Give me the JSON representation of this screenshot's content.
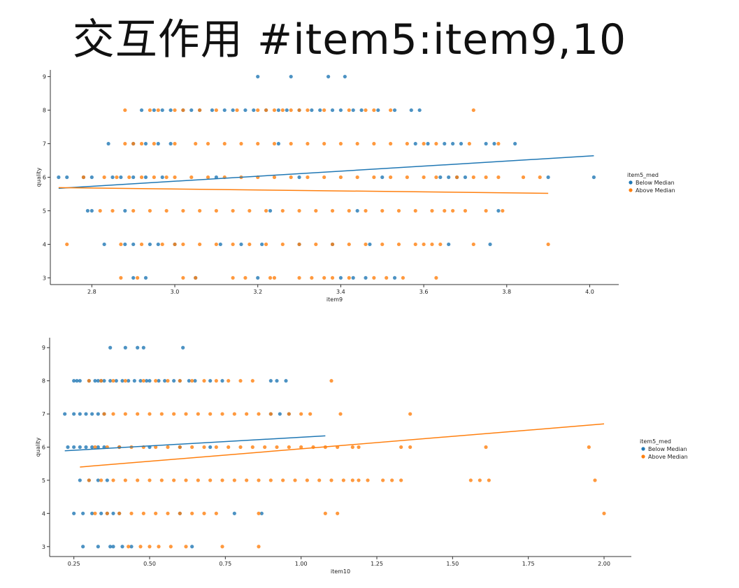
{
  "page_title": "交互作用 #item5:item9,10",
  "chart_data": [
    {
      "type": "scatter",
      "xlabel": "item9",
      "ylabel": "quality",
      "xlim": [
        2.7,
        4.07
      ],
      "ylim": [
        2.8,
        9.2
      ],
      "xticks": [
        2.8,
        3.0,
        3.2,
        3.4,
        3.6,
        3.8,
        4.0
      ],
      "xtick_labels": [
        "2.8",
        "3.0",
        "3.2",
        "3.4",
        "3.6",
        "3.8",
        "4.0"
      ],
      "yticks": [
        3,
        4,
        5,
        6,
        7,
        8,
        9
      ],
      "ytick_labels": [
        "3",
        "4",
        "5",
        "6",
        "7",
        "8",
        "9"
      ],
      "legend": {
        "title": "item5_med",
        "position": "right"
      },
      "series": [
        {
          "name": "Below Median",
          "color": "#1f77b4",
          "points": {
            "9": [
              3.2,
              3.28,
              3.37,
              3.41
            ],
            "8": [
              2.92,
              2.95,
              2.97,
              2.99,
              3.02,
              3.04,
              3.06,
              3.09,
              3.12,
              3.14,
              3.17,
              3.19,
              3.22,
              3.25,
              3.27,
              3.3,
              3.33,
              3.35,
              3.38,
              3.4,
              3.43,
              3.45,
              3.49,
              3.53,
              3.57,
              3.59
            ],
            "7": [
              2.84,
              2.9,
              2.93,
              2.96,
              2.99,
              3.25,
              3.58,
              3.61,
              3.65,
              3.67,
              3.69,
              3.75,
              3.77,
              3.82
            ],
            "6": [
              2.72,
              2.74,
              2.78,
              2.8,
              2.85,
              2.87,
              2.9,
              2.93,
              2.97,
              3.1,
              3.3,
              3.5,
              3.64,
              3.66,
              3.68,
              3.7,
              3.9,
              4.01
            ],
            "5": [
              2.79,
              2.8,
              2.88,
              3.23,
              3.44,
              3.78
            ],
            "4": [
              2.83,
              2.88,
              2.9,
              2.94,
              2.96,
              3.0,
              3.11,
              3.16,
              3.21,
              3.3,
              3.38,
              3.47,
              3.66,
              3.76
            ],
            "3": [
              2.9,
              2.93,
              3.05,
              3.2,
              3.4,
              3.43,
              3.46,
              3.53
            ]
          },
          "fit_line": {
            "x": [
              2.72,
              4.01
            ],
            "y": [
              5.67,
              6.64
            ]
          }
        },
        {
          "name": "Above Median",
          "color": "#ff7f0e",
          "points": {
            "8": [
              2.88,
              2.94,
              2.96,
              3.0,
              3.02,
              3.06,
              3.1,
              3.15,
              3.2,
              3.22,
              3.24,
              3.26,
              3.28,
              3.3,
              3.32,
              3.36,
              3.42,
              3.46,
              3.48,
              3.52,
              3.72
            ],
            "7": [
              2.88,
              2.9,
              2.92,
              2.95,
              3.0,
              3.05,
              3.08,
              3.12,
              3.16,
              3.2,
              3.24,
              3.28,
              3.32,
              3.36,
              3.4,
              3.44,
              3.48,
              3.52,
              3.56,
              3.6,
              3.63,
              3.71,
              3.78
            ],
            "6": [
              2.78,
              2.83,
              2.86,
              2.89,
              2.92,
              2.95,
              2.98,
              3.0,
              3.04,
              3.08,
              3.12,
              3.16,
              3.2,
              3.24,
              3.28,
              3.32,
              3.36,
              3.4,
              3.44,
              3.48,
              3.52,
              3.56,
              3.6,
              3.63,
              3.68,
              3.72,
              3.75,
              3.78,
              3.84,
              3.88
            ],
            "5": [
              2.82,
              2.85,
              2.9,
              2.94,
              2.98,
              3.02,
              3.06,
              3.1,
              3.14,
              3.18,
              3.22,
              3.26,
              3.3,
              3.34,
              3.38,
              3.42,
              3.46,
              3.5,
              3.54,
              3.58,
              3.62,
              3.65,
              3.67,
              3.7,
              3.75,
              3.79
            ],
            "4": [
              2.74,
              2.87,
              2.92,
              2.97,
              3.0,
              3.02,
              3.06,
              3.1,
              3.14,
              3.18,
              3.22,
              3.26,
              3.3,
              3.34,
              3.38,
              3.42,
              3.46,
              3.5,
              3.54,
              3.58,
              3.6,
              3.62,
              3.64,
              3.72,
              3.9
            ],
            "3": [
              2.87,
              2.91,
              3.02,
              3.05,
              3.14,
              3.17,
              3.23,
              3.24,
              3.3,
              3.33,
              3.36,
              3.38,
              3.42,
              3.48,
              3.51,
              3.55,
              3.63
            ]
          },
          "fit_line": {
            "x": [
              2.72,
              3.9
            ],
            "y": [
              5.69,
              5.52
            ]
          }
        }
      ]
    },
    {
      "type": "scatter",
      "xlabel": "item10",
      "ylabel": "quality",
      "xlim": [
        0.17,
        2.09
      ],
      "ylim": [
        2.7,
        9.3
      ],
      "xticks": [
        0.25,
        0.5,
        0.75,
        1.0,
        1.25,
        1.5,
        1.75,
        2.0
      ],
      "xtick_labels": [
        "0.25",
        "0.50",
        "0.75",
        "1.00",
        "1.25",
        "1.50",
        "1.75",
        "2.00"
      ],
      "yticks": [
        3,
        4,
        5,
        6,
        7,
        8,
        9
      ],
      "ytick_labels": [
        "3",
        "4",
        "5",
        "6",
        "7",
        "8",
        "9"
      ],
      "legend": {
        "title": "item5_med",
        "position": "right"
      },
      "series": [
        {
          "name": "Below Median",
          "color": "#1f77b4",
          "points": {
            "9": [
              0.37,
              0.42,
              0.46,
              0.48,
              0.61
            ],
            "8": [
              0.25,
              0.26,
              0.27,
              0.3,
              0.32,
              0.33,
              0.34,
              0.35,
              0.37,
              0.39,
              0.41,
              0.43,
              0.45,
              0.47,
              0.49,
              0.5,
              0.53,
              0.55,
              0.58,
              0.6,
              0.63,
              0.65,
              0.7,
              0.74,
              0.9,
              0.92,
              0.95
            ],
            "7": [
              0.22,
              0.25,
              0.27,
              0.29,
              0.31,
              0.33,
              0.35,
              0.9,
              0.93,
              0.96
            ],
            "6": [
              0.23,
              0.25,
              0.27,
              0.29,
              0.31,
              0.33,
              0.35,
              0.4,
              0.5,
              0.6,
              0.7
            ],
            "5": [
              0.27,
              0.3,
              0.33,
              0.36
            ],
            "4": [
              0.25,
              0.28,
              0.31,
              0.34,
              0.36,
              0.38,
              0.4,
              0.6,
              0.78,
              0.87
            ],
            "3": [
              0.28,
              0.33,
              0.37,
              0.38,
              0.41,
              0.44,
              0.64
            ]
          },
          "fit_line": {
            "x": [
              0.22,
              1.08
            ],
            "y": [
              5.89,
              6.34
            ]
          }
        },
        {
          "name": "Above Median",
          "color": "#ff7f0e",
          "points": {
            "8": [
              0.3,
              0.34,
              0.38,
              0.42,
              0.48,
              0.52,
              0.56,
              0.6,
              0.64,
              0.68,
              0.72,
              0.76,
              0.8,
              0.84,
              1.1
            ],
            "7": [
              0.35,
              0.38,
              0.42,
              0.46,
              0.5,
              0.54,
              0.58,
              0.62,
              0.66,
              0.7,
              0.74,
              0.78,
              0.82,
              0.86,
              0.9,
              0.96,
              1.0,
              1.03,
              1.13,
              1.36
            ],
            "6": [
              0.32,
              0.36,
              0.4,
              0.44,
              0.48,
              0.52,
              0.56,
              0.6,
              0.64,
              0.68,
              0.72,
              0.76,
              0.8,
              0.84,
              0.88,
              0.92,
              0.96,
              1.0,
              1.04,
              1.08,
              1.12,
              1.17,
              1.19,
              1.33,
              1.36,
              1.61,
              1.95
            ],
            "5": [
              0.3,
              0.34,
              0.38,
              0.42,
              0.46,
              0.5,
              0.54,
              0.58,
              0.62,
              0.66,
              0.7,
              0.74,
              0.78,
              0.82,
              0.86,
              0.9,
              0.94,
              0.98,
              1.02,
              1.06,
              1.1,
              1.14,
              1.17,
              1.19,
              1.22,
              1.27,
              1.3,
              1.33,
              1.56,
              1.59,
              1.62,
              1.97
            ],
            "4": [
              0.32,
              0.36,
              0.4,
              0.44,
              0.48,
              0.52,
              0.56,
              0.6,
              0.64,
              0.68,
              0.72,
              0.86,
              1.08,
              1.12,
              2.0
            ],
            "3": [
              0.43,
              0.47,
              0.5,
              0.53,
              0.57,
              0.62,
              0.74,
              0.86
            ]
          },
          "fit_line": {
            "x": [
              0.27,
              2.0
            ],
            "y": [
              5.4,
              6.7
            ]
          }
        }
      ]
    }
  ]
}
